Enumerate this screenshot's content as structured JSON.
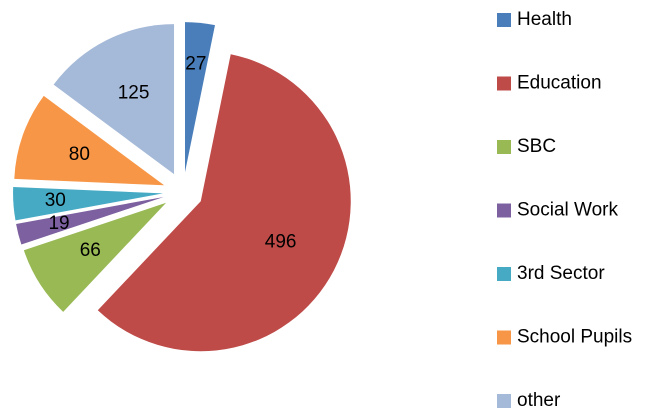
{
  "chart_data": {
    "type": "pie",
    "categories": [
      "Health",
      "Education",
      "SBC",
      "Social Work",
      "3rd Sector",
      "School Pupils",
      "other"
    ],
    "values": [
      27,
      496,
      66,
      19,
      30,
      80,
      125
    ],
    "colors": [
      "#4a7ebb",
      "#be4b48",
      "#98b954",
      "#7d60a0",
      "#46aac5",
      "#f79646",
      "#a5b9d8"
    ],
    "legend": "right"
  }
}
